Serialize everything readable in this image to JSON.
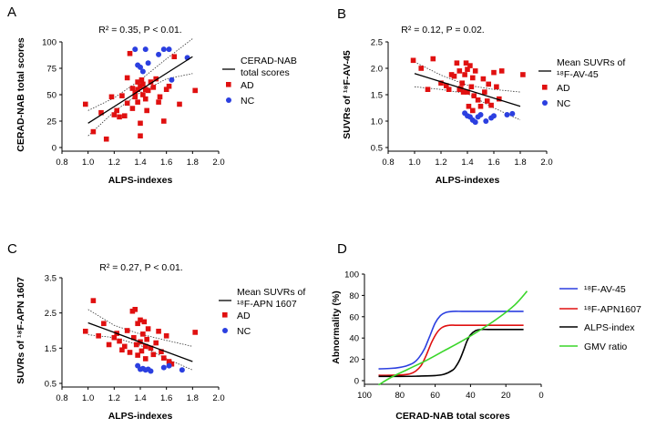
{
  "chart_data": [
    {
      "panel": "A",
      "type": "scatter",
      "stat": "R² = 0.35, P < 0.01.",
      "xlabel": "ALPS-indexes",
      "ylabel": "CERAD-NAB total scores",
      "xlim": [
        0.8,
        2.0
      ],
      "ylim": [
        0,
        100
      ],
      "xticks": [
        "0.8",
        "1.0",
        "1.2",
        "1.4",
        "1.6",
        "1.8",
        "2.0"
      ],
      "yticks": [
        "0",
        "25",
        "50",
        "75",
        "100"
      ],
      "legend": {
        "line": [
          "CERAD-NAB",
          "total scores"
        ],
        "ad": "AD",
        "nc": "NC"
      },
      "fit": {
        "x": [
          1.0,
          1.8
        ],
        "y": [
          23,
          86
        ]
      },
      "ci_upper": {
        "x": [
          1.0,
          1.2,
          1.4,
          1.6,
          1.8
        ],
        "y": [
          35,
          47,
          64,
          84,
          103
        ]
      },
      "ci_lower": {
        "x": [
          1.0,
          1.2,
          1.4,
          1.6,
          1.8
        ],
        "y": [
          11,
          34,
          52,
          65,
          70
        ]
      },
      "series": [
        {
          "name": "AD",
          "color": "#e01010",
          "x": [
            0.98,
            1.04,
            1.1,
            1.14,
            1.18,
            1.2,
            1.22,
            1.24,
            1.26,
            1.28,
            1.3,
            1.3,
            1.32,
            1.34,
            1.34,
            1.36,
            1.36,
            1.38,
            1.38,
            1.38,
            1.4,
            1.4,
            1.4,
            1.41,
            1.42,
            1.42,
            1.44,
            1.44,
            1.45,
            1.46,
            1.48,
            1.5,
            1.52,
            1.54,
            1.55,
            1.58,
            1.6,
            1.62,
            1.66,
            1.7,
            1.82
          ],
          "y": [
            41,
            15,
            33,
            8,
            48,
            31,
            35,
            29,
            49,
            30,
            66,
            42,
            89,
            37,
            56,
            52,
            48,
            62,
            55,
            43,
            58,
            23,
            11,
            64,
            60,
            50,
            55,
            46,
            35,
            54,
            62,
            57,
            65,
            43,
            48,
            25,
            55,
            58,
            86,
            41,
            54
          ]
        },
        {
          "name": "NC",
          "color": "#2b3fe0",
          "x": [
            1.36,
            1.38,
            1.4,
            1.42,
            1.44,
            1.46,
            1.54,
            1.58,
            1.62,
            1.64,
            1.76
          ],
          "y": [
            93,
            78,
            76,
            72,
            93,
            80,
            88,
            93,
            93,
            64,
            85
          ]
        }
      ]
    },
    {
      "panel": "B",
      "type": "scatter",
      "stat": "R² = 0.12, P = 0.02.",
      "xlabel": "ALPS-indexes",
      "ylabel": "SUVRs of ¹⁸F-AV-45",
      "xlim": [
        0.8,
        2.0
      ],
      "ylim": [
        0.5,
        2.5
      ],
      "xticks": [
        "0.8",
        "1.0",
        "1.2",
        "1.4",
        "1.6",
        "1.8",
        "2.0"
      ],
      "yticks": [
        "0.5",
        "1.0",
        "1.5",
        "2.0",
        "2.5"
      ],
      "legend": {
        "line": [
          "Mean SUVRs of",
          "¹⁸F-AV-45"
        ],
        "ad": "AD",
        "nc": "NC"
      },
      "fit": {
        "x": [
          1.0,
          1.8
        ],
        "y": [
          1.9,
          1.28
        ]
      },
      "ci_upper": {
        "x": [
          1.0,
          1.2,
          1.4,
          1.6,
          1.8
        ],
        "y": [
          2.12,
          1.87,
          1.68,
          1.6,
          1.55
        ]
      },
      "ci_lower": {
        "x": [
          1.0,
          1.2,
          1.4,
          1.6,
          1.8
        ],
        "y": [
          1.65,
          1.6,
          1.52,
          1.25,
          1.02
        ]
      },
      "series": [
        {
          "name": "AD",
          "color": "#e01010",
          "x": [
            0.99,
            1.05,
            1.1,
            1.14,
            1.2,
            1.24,
            1.26,
            1.28,
            1.3,
            1.32,
            1.34,
            1.34,
            1.35,
            1.36,
            1.37,
            1.38,
            1.39,
            1.4,
            1.4,
            1.41,
            1.42,
            1.43,
            1.44,
            1.44,
            1.45,
            1.46,
            1.48,
            1.5,
            1.52,
            1.53,
            1.55,
            1.56,
            1.58,
            1.6,
            1.62,
            1.64,
            1.66,
            1.82
          ],
          "y": [
            2.15,
            2.0,
            1.6,
            2.18,
            1.72,
            1.67,
            1.6,
            1.88,
            1.85,
            2.1,
            1.95,
            1.6,
            1.62,
            1.72,
            1.55,
            1.88,
            2.1,
            1.98,
            1.55,
            1.28,
            2.05,
            1.65,
            1.82,
            1.2,
            1.48,
            1.95,
            1.4,
            1.28,
            1.8,
            1.55,
            1.38,
            1.7,
            1.3,
            1.92,
            1.65,
            1.42,
            1.95,
            1.88
          ]
        },
        {
          "name": "NC",
          "color": "#2b3fe0",
          "x": [
            1.38,
            1.4,
            1.42,
            1.44,
            1.46,
            1.48,
            1.5,
            1.54,
            1.58,
            1.6,
            1.7,
            1.74
          ],
          "y": [
            1.15,
            1.1,
            1.08,
            1.02,
            0.98,
            1.08,
            1.12,
            1.0,
            1.06,
            1.1,
            1.12,
            1.14
          ]
        }
      ]
    },
    {
      "panel": "C",
      "type": "scatter",
      "stat": "R² = 0.27, P < 0.01.",
      "xlabel": "ALPS-indexes",
      "ylabel": "SUVRs of ¹⁸F-APN 1607",
      "xlim": [
        0.8,
        2.0
      ],
      "ylim": [
        0.5,
        3.5
      ],
      "xticks": [
        "0.8",
        "1.0",
        "1.2",
        "1.4",
        "1.6",
        "1.8",
        "2.0"
      ],
      "yticks": [
        "0.5",
        "1.5",
        "2.5",
        "3.5"
      ],
      "legend": {
        "line": [
          "Mean SUVRs of",
          "¹⁸F-APN 1607"
        ],
        "ad": "AD",
        "nc": "NC"
      },
      "fit": {
        "x": [
          1.0,
          1.8
        ],
        "y": [
          2.22,
          1.12
        ]
      },
      "ci_upper": {
        "x": [
          1.0,
          1.2,
          1.4,
          1.6,
          1.8
        ],
        "y": [
          2.6,
          2.15,
          1.9,
          1.72,
          1.55
        ]
      },
      "ci_lower": {
        "x": [
          1.0,
          1.2,
          1.4,
          1.6,
          1.8
        ],
        "y": [
          1.88,
          1.8,
          1.58,
          1.2,
          0.88
        ]
      },
      "series": [
        {
          "name": "AD",
          "color": "#e01010",
          "x": [
            0.98,
            1.04,
            1.08,
            1.12,
            1.16,
            1.2,
            1.22,
            1.24,
            1.26,
            1.28,
            1.3,
            1.32,
            1.34,
            1.35,
            1.36,
            1.37,
            1.38,
            1.38,
            1.4,
            1.4,
            1.41,
            1.42,
            1.43,
            1.44,
            1.44,
            1.45,
            1.46,
            1.48,
            1.5,
            1.52,
            1.54,
            1.56,
            1.58,
            1.6,
            1.62,
            1.64,
            1.82
          ],
          "y": [
            1.98,
            2.85,
            1.85,
            2.2,
            1.6,
            1.8,
            1.92,
            1.7,
            1.45,
            1.55,
            2.0,
            1.38,
            2.55,
            1.8,
            2.6,
            1.6,
            2.2,
            1.3,
            1.68,
            2.3,
            1.42,
            1.9,
            2.25,
            1.55,
            1.2,
            1.75,
            2.05,
            1.5,
            1.32,
            1.65,
            1.98,
            1.4,
            1.22,
            1.85,
            1.12,
            1.05,
            1.95
          ]
        },
        {
          "name": "NC",
          "color": "#2b3fe0",
          "x": [
            1.38,
            1.4,
            1.42,
            1.44,
            1.46,
            1.48,
            1.58,
            1.62,
            1.72
          ],
          "y": [
            1.0,
            0.9,
            0.92,
            0.88,
            0.9,
            0.85,
            0.95,
            1.0,
            0.88
          ]
        }
      ]
    },
    {
      "panel": "D",
      "type": "line",
      "xlabel": "CERAD-NAB total scores",
      "ylabel": "Abnormality (%)",
      "xlim": [
        100,
        0
      ],
      "ylim": [
        0,
        100
      ],
      "xticks": [
        "100",
        "80",
        "60",
        "40",
        "20",
        "0"
      ],
      "yticks": [
        "0",
        "20",
        "40",
        "60",
        "80",
        "100"
      ],
      "series": [
        {
          "name": "¹⁸F-AV-45",
          "color": "#2b3fe0",
          "x": [
            92,
            85,
            80,
            76,
            72,
            69,
            66,
            63,
            60,
            57,
            54,
            50,
            45,
            40,
            30,
            20,
            10
          ],
          "y": [
            11,
            11.5,
            12.5,
            14,
            17,
            22,
            30,
            42,
            54,
            61,
            64,
            65,
            65,
            65,
            65,
            65,
            65
          ]
        },
        {
          "name": "¹⁸F-APN1607",
          "color": "#e01010",
          "x": [
            92,
            85,
            78,
            74,
            71,
            68,
            65,
            62,
            59,
            56,
            52,
            48,
            40,
            30,
            20,
            10
          ],
          "y": [
            5,
            5,
            5.5,
            6.5,
            9,
            14,
            24,
            36,
            45,
            50,
            52,
            52,
            52,
            52,
            52,
            52
          ]
        },
        {
          "name": "ALPS-index",
          "color": "#000000",
          "x": [
            92,
            80,
            70,
            60,
            55,
            50,
            48,
            46,
            44,
            42,
            40,
            37,
            34,
            30,
            20,
            10
          ],
          "y": [
            4,
            4,
            4.2,
            4.8,
            6,
            10,
            14,
            20,
            28,
            37,
            43,
            47,
            48,
            48,
            48,
            48
          ]
        },
        {
          "name": "GMV ratio",
          "color": "#3ad62a",
          "x": [
            92,
            85,
            75,
            65,
            55,
            45,
            35,
            25,
            15,
            8
          ],
          "y": [
            -4,
            3,
            11,
            19,
            28,
            37,
            47,
            58,
            71,
            84
          ]
        }
      ]
    }
  ]
}
